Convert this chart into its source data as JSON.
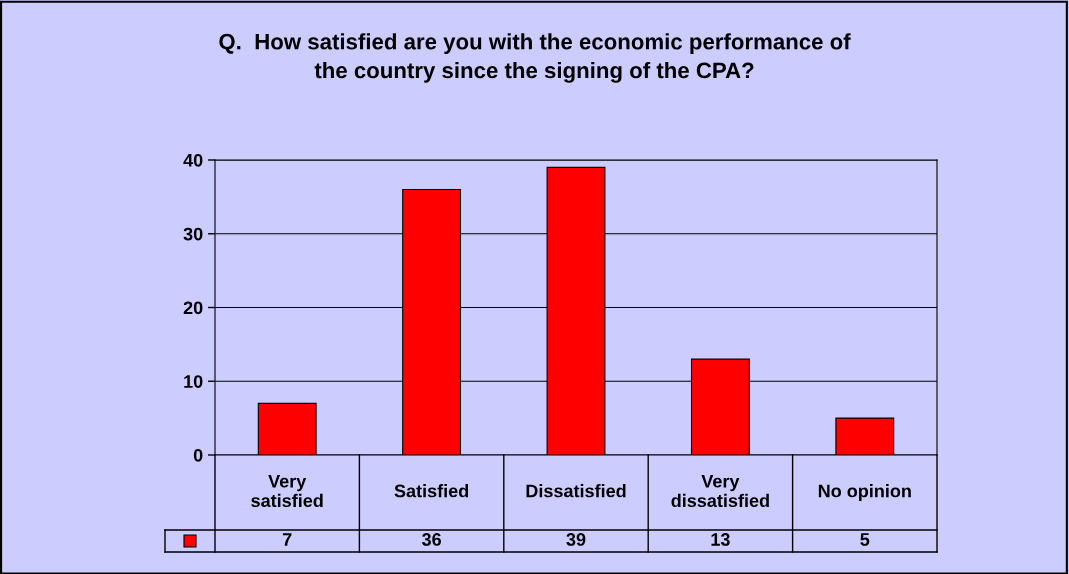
{
  "chart_data": {
    "type": "bar",
    "title": "Q.  How satisfied are you with the economic performance of\nthe country since the signing of the CPA?",
    "categories": [
      "Very satisfied",
      "Satisfied",
      "Dissatisfied",
      "Very dissatisfied",
      "No opinion"
    ],
    "values": [
      7,
      36,
      39,
      13,
      5
    ],
    "color": "#ff0000",
    "ylim": [
      0,
      40
    ],
    "yticks": [
      0,
      10,
      20,
      30,
      40
    ],
    "grid": "y",
    "data_labels": true
  }
}
